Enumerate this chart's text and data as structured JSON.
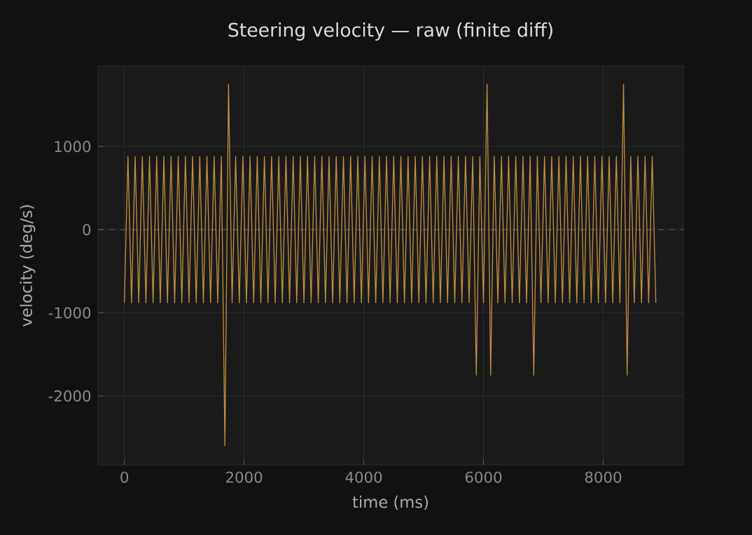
{
  "chart_data": {
    "type": "line",
    "title": "Steering velocity — raw (finite diff)",
    "xlabel": "time (ms)",
    "ylabel": "velocity (deg/s)",
    "xlim": [
      -440,
      9340
    ],
    "ylim": [
      -2830,
      1970
    ],
    "xticks": [
      0,
      2000,
      4000,
      6000,
      8000
    ],
    "yticks": [
      -2000,
      -1000,
      0,
      1000
    ],
    "grid": true,
    "marker": "none",
    "line_style": "solid",
    "ref_lines": [
      {
        "axis": "y",
        "value": 0,
        "color": "#555555",
        "line_style": "dashed"
      }
    ],
    "series": [
      {
        "color": "#c08e40",
        "x": [
          0,
          60,
          120,
          180,
          240,
          300,
          360,
          420,
          480,
          540,
          600,
          660,
          720,
          780,
          840,
          900,
          960,
          1020,
          1080,
          1140,
          1200,
          1260,
          1320,
          1380,
          1440,
          1500,
          1560,
          1620,
          1680,
          1740,
          1800,
          1860,
          1920,
          1980,
          2040,
          2100,
          2160,
          2220,
          2280,
          2340,
          2400,
          2460,
          2520,
          2580,
          2640,
          2700,
          2760,
          2820,
          2880,
          2940,
          3000,
          3060,
          3120,
          3180,
          3240,
          3300,
          3360,
          3420,
          3480,
          3540,
          3600,
          3660,
          3720,
          3780,
          3840,
          3900,
          3960,
          4020,
          4080,
          4140,
          4200,
          4260,
          4320,
          4380,
          4440,
          4500,
          4560,
          4620,
          4680,
          4740,
          4800,
          4860,
          4920,
          4980,
          5040,
          5100,
          5160,
          5220,
          5280,
          5340,
          5400,
          5460,
          5520,
          5580,
          5640,
          5700,
          5760,
          5820,
          5880,
          5940,
          6000,
          6060,
          6120,
          6180,
          6240,
          6300,
          6360,
          6420,
          6480,
          6540,
          6600,
          6660,
          6720,
          6780,
          6840,
          6900,
          6960,
          7020,
          7080,
          7140,
          7200,
          7260,
          7320,
          7380,
          7440,
          7500,
          7560,
          7620,
          7680,
          7740,
          7800,
          7860,
          7920,
          7980,
          8040,
          8100,
          8160,
          8220,
          8280,
          8340,
          8400,
          8460,
          8520,
          8580,
          8640,
          8700,
          8760,
          8820,
          8880
        ],
        "values": [
          -880,
          880,
          -880,
          880,
          -880,
          880,
          -880,
          880,
          -880,
          880,
          -880,
          880,
          -880,
          880,
          -880,
          880,
          -880,
          880,
          -880,
          880,
          -880,
          880,
          -880,
          880,
          -880,
          880,
          -880,
          880,
          -2600,
          1750,
          -880,
          880,
          -880,
          880,
          -880,
          880,
          -880,
          880,
          -880,
          880,
          -880,
          880,
          -880,
          880,
          -880,
          880,
          -880,
          880,
          -880,
          880,
          -880,
          880,
          -880,
          880,
          -880,
          880,
          -880,
          880,
          -880,
          880,
          -880,
          880,
          -880,
          880,
          -880,
          880,
          -880,
          880,
          -880,
          880,
          -880,
          880,
          -880,
          880,
          -880,
          880,
          -880,
          880,
          -880,
          880,
          -880,
          880,
          -880,
          880,
          -880,
          880,
          -880,
          880,
          -880,
          880,
          -880,
          880,
          -880,
          880,
          -880,
          880,
          -880,
          880,
          -1750,
          880,
          -880,
          1750,
          -1750,
          880,
          -880,
          880,
          -880,
          880,
          -880,
          880,
          -880,
          880,
          -880,
          880,
          -1750,
          880,
          -880,
          880,
          -880,
          880,
          -880,
          880,
          -880,
          880,
          -880,
          880,
          -880,
          880,
          -880,
          880,
          -880,
          880,
          -880,
          880,
          -880,
          880,
          -880,
          880,
          -880,
          1750,
          -1750,
          880,
          -880,
          880,
          -880,
          880,
          -880,
          880,
          -880
        ]
      }
    ]
  }
}
